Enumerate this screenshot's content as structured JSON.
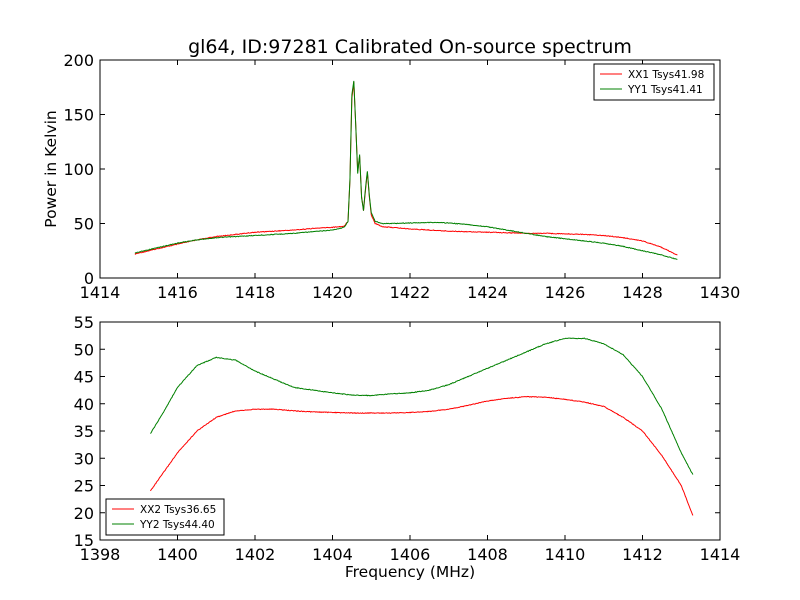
{
  "chart_data": [
    {
      "type": "line",
      "title": "gl64, ID:97281 Calibrated On-source spectrum",
      "xlabel": "",
      "ylabel": "Power in Kelvin",
      "xlim": [
        1414,
        1430
      ],
      "ylim": [
        0,
        200
      ],
      "xticks": [
        1414,
        1416,
        1418,
        1420,
        1422,
        1424,
        1426,
        1428,
        1430
      ],
      "yticks": [
        0,
        50,
        100,
        150,
        200
      ],
      "grid": false,
      "legend_position": "top-right",
      "series": [
        {
          "name": "XX1 Tsys41.98",
          "color": "#ff0000",
          "points": [
            [
              1414.9,
              22
            ],
            [
              1415.5,
              27
            ],
            [
              1416,
              31
            ],
            [
              1416.5,
              35
            ],
            [
              1417,
              38
            ],
            [
              1417.5,
              40
            ],
            [
              1418,
              42
            ],
            [
              1418.5,
              43
            ],
            [
              1419,
              44
            ],
            [
              1419.5,
              45.5
            ],
            [
              1420,
              46.5
            ],
            [
              1420.3,
              47.5
            ],
            [
              1420.4,
              52
            ],
            [
              1420.45,
              90
            ],
            [
              1420.5,
              165
            ],
            [
              1420.55,
              180
            ],
            [
              1420.6,
              140
            ],
            [
              1420.65,
              98
            ],
            [
              1420.7,
              112
            ],
            [
              1420.75,
              75
            ],
            [
              1420.8,
              62
            ],
            [
              1420.85,
              80
            ],
            [
              1420.9,
              97
            ],
            [
              1420.95,
              75
            ],
            [
              1421,
              58
            ],
            [
              1421.1,
              50
            ],
            [
              1421.3,
              47
            ],
            [
              1421.5,
              46.5
            ],
            [
              1422,
              45
            ],
            [
              1422.5,
              44
            ],
            [
              1423,
              43
            ],
            [
              1423.5,
              42.5
            ],
            [
              1424,
              42
            ],
            [
              1424.5,
              41.5
            ],
            [
              1425,
              41
            ],
            [
              1425.5,
              41
            ],
            [
              1426,
              40.5
            ],
            [
              1426.5,
              40
            ],
            [
              1427,
              39
            ],
            [
              1427.5,
              37
            ],
            [
              1428,
              34
            ],
            [
              1428.5,
              28
            ],
            [
              1428.9,
              21
            ]
          ]
        },
        {
          "name": "YY1 Tsys41.41",
          "color": "#008000",
          "points": [
            [
              1414.9,
              23
            ],
            [
              1415.5,
              28
            ],
            [
              1416,
              32
            ],
            [
              1416.5,
              35
            ],
            [
              1417,
              37
            ],
            [
              1417.5,
              38
            ],
            [
              1418,
              39
            ],
            [
              1418.5,
              40
            ],
            [
              1419,
              41
            ],
            [
              1419.5,
              42.5
            ],
            [
              1420,
              44
            ],
            [
              1420.3,
              46.5
            ],
            [
              1420.4,
              52
            ],
            [
              1420.45,
              90
            ],
            [
              1420.5,
              168
            ],
            [
              1420.55,
              181
            ],
            [
              1420.6,
              140
            ],
            [
              1420.65,
              96
            ],
            [
              1420.7,
              113
            ],
            [
              1420.75,
              74
            ],
            [
              1420.8,
              62
            ],
            [
              1420.85,
              82
            ],
            [
              1420.9,
              98
            ],
            [
              1420.95,
              76
            ],
            [
              1421,
              60
            ],
            [
              1421.1,
              52
            ],
            [
              1421.3,
              50
            ],
            [
              1421.5,
              50
            ],
            [
              1422,
              50.5
            ],
            [
              1422.5,
              51
            ],
            [
              1423,
              50.5
            ],
            [
              1423.5,
              49
            ],
            [
              1424,
              47
            ],
            [
              1424.5,
              44
            ],
            [
              1425,
              41
            ],
            [
              1425.5,
              38
            ],
            [
              1426,
              36
            ],
            [
              1426.5,
              34
            ],
            [
              1427,
              32
            ],
            [
              1427.5,
              29
            ],
            [
              1428,
              25
            ],
            [
              1428.5,
              21
            ],
            [
              1428.9,
              17
            ]
          ]
        }
      ]
    },
    {
      "type": "line",
      "title": "",
      "xlabel": "Frequency (MHz)",
      "ylabel": "",
      "xlim": [
        1398,
        1414
      ],
      "ylim": [
        15,
        55
      ],
      "xticks": [
        1398,
        1400,
        1402,
        1404,
        1406,
        1408,
        1410,
        1412,
        1414
      ],
      "yticks": [
        15,
        20,
        25,
        30,
        35,
        40,
        45,
        50,
        55
      ],
      "grid": false,
      "legend_position": "bottom-left",
      "series": [
        {
          "name": "XX2 Tsys36.65",
          "color": "#ff0000",
          "points": [
            [
              1399.3,
              24
            ],
            [
              1399.6,
              27
            ],
            [
              1400,
              31
            ],
            [
              1400.5,
              35
            ],
            [
              1401,
              37.5
            ],
            [
              1401.5,
              38.7
            ],
            [
              1402,
              39
            ],
            [
              1402.5,
              39
            ],
            [
              1403,
              38.7
            ],
            [
              1403.5,
              38.5
            ],
            [
              1404,
              38.4
            ],
            [
              1404.5,
              38.3
            ],
            [
              1405,
              38.3
            ],
            [
              1405.5,
              38.3
            ],
            [
              1406,
              38.4
            ],
            [
              1406.5,
              38.6
            ],
            [
              1407,
              39
            ],
            [
              1407.5,
              39.7
            ],
            [
              1408,
              40.5
            ],
            [
              1408.5,
              41
            ],
            [
              1409,
              41.3
            ],
            [
              1409.5,
              41.2
            ],
            [
              1410,
              40.8
            ],
            [
              1410.5,
              40.3
            ],
            [
              1411,
              39.5
            ],
            [
              1411.5,
              37.5
            ],
            [
              1412,
              35
            ],
            [
              1412.5,
              30.5
            ],
            [
              1413,
              25
            ],
            [
              1413.3,
              19.5
            ]
          ]
        },
        {
          "name": "YY2 Tsys44.40",
          "color": "#008000",
          "points": [
            [
              1399.3,
              34.5
            ],
            [
              1399.6,
              38
            ],
            [
              1400,
              43
            ],
            [
              1400.5,
              47
            ],
            [
              1401,
              48.5
            ],
            [
              1401.5,
              48
            ],
            [
              1402,
              46
            ],
            [
              1402.5,
              44.5
            ],
            [
              1403,
              43
            ],
            [
              1403.5,
              42.5
            ],
            [
              1404,
              42
            ],
            [
              1404.5,
              41.6
            ],
            [
              1405,
              41.5
            ],
            [
              1405.5,
              41.8
            ],
            [
              1406,
              42
            ],
            [
              1406.5,
              42.5
            ],
            [
              1407,
              43.5
            ],
            [
              1407.5,
              45
            ],
            [
              1408,
              46.5
            ],
            [
              1408.5,
              48
            ],
            [
              1409,
              49.5
            ],
            [
              1409.5,
              51
            ],
            [
              1410,
              52
            ],
            [
              1410.5,
              52
            ],
            [
              1411,
              51
            ],
            [
              1411.5,
              49
            ],
            [
              1412,
              45
            ],
            [
              1412.5,
              39
            ],
            [
              1413,
              31
            ],
            [
              1413.3,
              27
            ]
          ]
        }
      ]
    }
  ]
}
